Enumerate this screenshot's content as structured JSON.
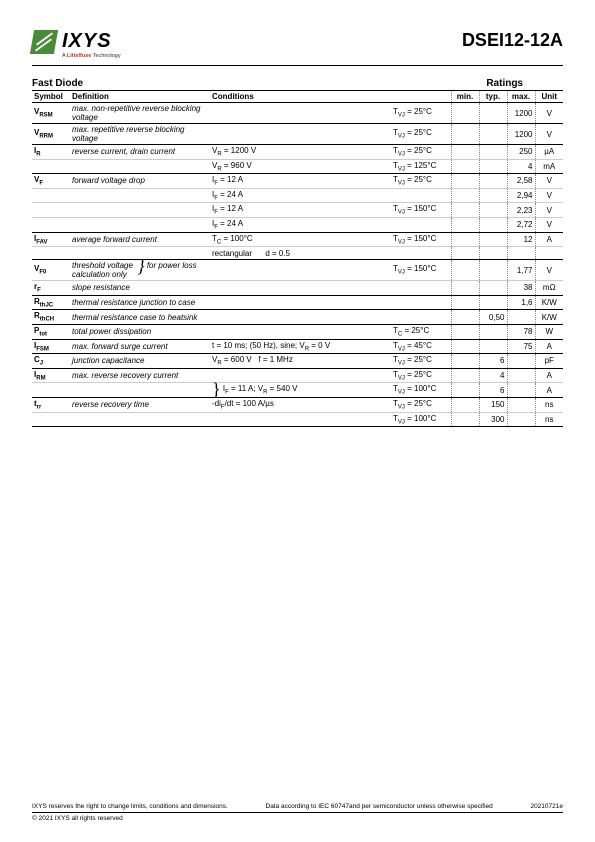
{
  "header": {
    "brand": "IXYS",
    "tagline_pre": "A ",
    "tagline_brand": "Littelfuse",
    "tagline_post": " Technology",
    "part_number": "DSEI12-12A"
  },
  "section": {
    "title": "Fast Diode",
    "ratings_label": "Ratings"
  },
  "columns": {
    "symbol": "Symbol",
    "definition": "Definition",
    "conditions": "Conditions",
    "min": "min.",
    "typ": "typ.",
    "max": "max.",
    "unit": "Unit"
  },
  "rows": [
    {
      "sym": "V",
      "sub": "RSM",
      "def": "max. non-repetitive reverse blocking voltage",
      "cond": "",
      "temp": "T<sub>VJ</sub> = 25°C",
      "min": "",
      "typ": "",
      "max": "1200",
      "unit": "V",
      "end": true
    },
    {
      "sym": "V",
      "sub": "RRM",
      "def": "max. repetitive reverse blocking voltage",
      "cond": "",
      "temp": "T<sub>VJ</sub> = 25°C",
      "min": "",
      "typ": "",
      "max": "1200",
      "unit": "V",
      "end": true
    },
    {
      "sym": "I",
      "sub": "R",
      "def": "reverse current, drain current",
      "cond": "V<sub>R</sub> = 1200 V",
      "temp": "T<sub>VJ</sub> = 25°C",
      "min": "",
      "typ": "",
      "max": "250",
      "unit": "µA",
      "end": false
    },
    {
      "sym": "",
      "sub": "",
      "def": "",
      "cond": "V<sub>R</sub> = 960 V",
      "temp": "T<sub>VJ</sub> = 125°C",
      "min": "",
      "typ": "",
      "max": "4",
      "unit": "mA",
      "end": true
    },
    {
      "sym": "V",
      "sub": "F",
      "def": "forward voltage drop",
      "cond": "I<sub>F</sub> = 12 A",
      "temp": "T<sub>VJ</sub> = 25°C",
      "min": "",
      "typ": "",
      "max": "2,58",
      "unit": "V",
      "end": false
    },
    {
      "sym": "",
      "sub": "",
      "def": "",
      "cond": "I<sub>F</sub> = 24 A",
      "temp": "",
      "min": "",
      "typ": "",
      "max": "2,94",
      "unit": "V",
      "end": false
    },
    {
      "sym": "",
      "sub": "",
      "def": "",
      "cond": "I<sub>F</sub> = 12 A",
      "temp": "T<sub>VJ</sub> = 150°C",
      "min": "",
      "typ": "",
      "max": "2,23",
      "unit": "V",
      "end": false
    },
    {
      "sym": "",
      "sub": "",
      "def": "",
      "cond": "I<sub>F</sub> = 24 A",
      "temp": "",
      "min": "",
      "typ": "",
      "max": "2,72",
      "unit": "V",
      "end": true
    },
    {
      "sym": "I",
      "sub": "FAV",
      "def": "average forward current",
      "cond": "T<sub>C</sub> = 100°C",
      "temp": "T<sub>VJ</sub> = 150°C",
      "min": "",
      "typ": "",
      "max": "12",
      "unit": "A",
      "end": false
    },
    {
      "sym": "",
      "sub": "",
      "def": "",
      "cond": "rectangular &nbsp;&nbsp;&nbsp;&nbsp; d = 0.5",
      "temp": "",
      "min": "",
      "typ": "",
      "max": "",
      "unit": "",
      "end": true
    },
    {
      "sym": "V",
      "sub": "F0",
      "def": "threshold voltage",
      "cond": "",
      "temp": "T<sub>VJ</sub> = 150°C",
      "min": "",
      "typ": "",
      "max": "1,77",
      "unit": "V",
      "end": false,
      "brace": true,
      "brace_text": "for power loss calculation only"
    },
    {
      "sym": "r",
      "sub": "F",
      "def": "slope resistance",
      "cond": "",
      "temp": "",
      "min": "",
      "typ": "",
      "max": "38",
      "unit": "mΩ",
      "end": true
    },
    {
      "sym": "R",
      "sub": "thJC",
      "def": "thermal resistance junction to case",
      "cond": "",
      "temp": "",
      "min": "",
      "typ": "",
      "max": "1,6",
      "unit": "K/W",
      "end": true
    },
    {
      "sym": "R",
      "sub": "thCH",
      "def": "thermal resistance case to heatsink",
      "cond": "",
      "temp": "",
      "min": "",
      "typ": "0,50",
      "max": "",
      "unit": "K/W",
      "end": true
    },
    {
      "sym": "P",
      "sub": "tot",
      "def": "total power dissipation",
      "cond": "",
      "temp": "T<sub>C</sub> = 25°C",
      "min": "",
      "typ": "",
      "max": "78",
      "unit": "W",
      "end": true
    },
    {
      "sym": "I",
      "sub": "FSM",
      "def": "max. forward surge current",
      "cond": "t = 10 ms; (50 Hz), sine; V<sub>R</sub> = 0 V",
      "temp": "T<sub>VJ</sub> = 45°C",
      "min": "",
      "typ": "",
      "max": "75",
      "unit": "A",
      "end": true
    },
    {
      "sym": "C",
      "sub": "J",
      "def": "junction capacitance",
      "cond": "V<sub>R</sub> = 600 V &nbsp; f = 1 MHz",
      "temp": "T<sub>VJ</sub> = 25°C",
      "min": "",
      "typ": "6",
      "max": "",
      "unit": "pF",
      "end": true
    },
    {
      "sym": "I",
      "sub": "RM",
      "def": "max. reverse recovery current",
      "cond": "",
      "temp": "T<sub>VJ</sub> = 25°C",
      "min": "",
      "typ": "4",
      "max": "",
      "unit": "A",
      "end": false
    },
    {
      "sym": "",
      "sub": "",
      "def": "",
      "cond": "I<sub>F</sub> = 11 A; V<sub>R</sub> = 540 V",
      "temp": "T<sub>VJ</sub> = 100°C",
      "min": "",
      "typ": "6",
      "max": "",
      "unit": "A",
      "end": true,
      "lbrace": true
    },
    {
      "sym": "t",
      "sub": "rr",
      "def": "reverse recovery time",
      "cond": "-di<sub>F</sub>/dt = 100 A/µs",
      "temp": "T<sub>VJ</sub> = 25°C",
      "min": "",
      "typ": "150",
      "max": "",
      "unit": "ns",
      "end": false
    },
    {
      "sym": "",
      "sub": "",
      "def": "",
      "cond": "",
      "temp": "T<sub>VJ</sub> = 100°C",
      "min": "",
      "typ": "300",
      "max": "",
      "unit": "ns",
      "end": true
    }
  ],
  "footer": {
    "disclaimer": "IXYS reserves the right to change limits, conditions and dimensions.",
    "standard": "Data according to IEC 60747and per semiconductor unless otherwise specified",
    "revision": "20210721e",
    "copyright": "© 2021 IXYS all rights reserved"
  }
}
